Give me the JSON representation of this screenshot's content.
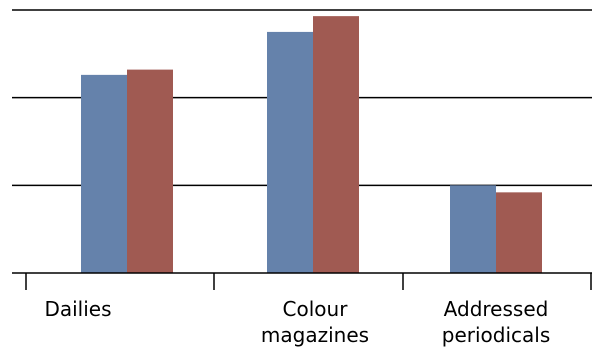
{
  "chart_data": {
    "type": "bar",
    "title": "",
    "xlabel": "",
    "ylabel": "",
    "categories": [
      [
        "Dailies"
      ],
      [
        "Colour",
        "magazines"
      ],
      [
        "Addressed",
        "periodicals"
      ]
    ],
    "series": [
      {
        "color": "#6582ab",
        "values": [
          2.26,
          2.75,
          1.0
        ]
      },
      {
        "color": "#a05a52",
        "values": [
          2.32,
          2.93,
          0.92
        ]
      }
    ],
    "ylim": [
      0,
      3.0
    ],
    "gridlines": [
      1,
      2,
      3
    ],
    "grid": true,
    "y_tick_labels_shown": false,
    "legend": "none"
  }
}
